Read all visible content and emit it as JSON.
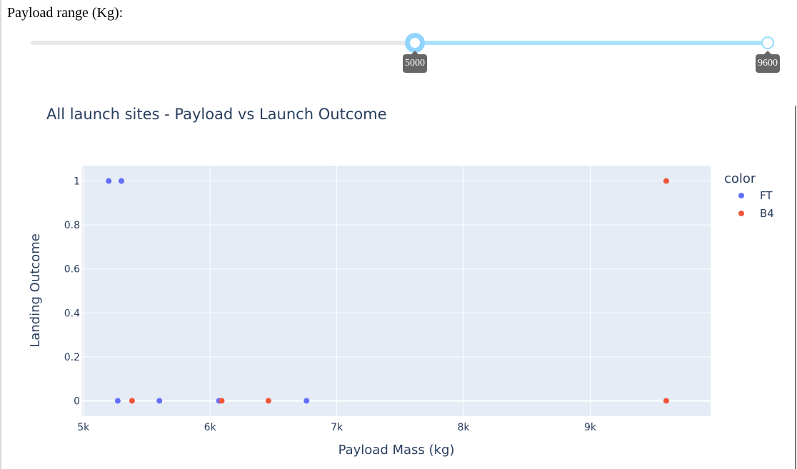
{
  "slider": {
    "label": "Payload range (Kg):",
    "min_value": 5000,
    "max_value": 9600,
    "min_label": "5000",
    "max_label": "9600"
  },
  "chart_data": {
    "type": "scatter",
    "title": "All launch sites - Payload vs Launch Outcome",
    "xlabel": "Payload Mass (kg)",
    "ylabel": "Landing Outcome",
    "xlim": [
      4990,
      9950
    ],
    "ylim": [
      -0.07,
      1.07
    ],
    "x_ticks": [
      5000,
      6000,
      7000,
      8000,
      9000
    ],
    "x_tick_labels": [
      "5k",
      "6k",
      "7k",
      "8k",
      "9k"
    ],
    "y_ticks": [
      0,
      0.2,
      0.4,
      0.6,
      0.8,
      1
    ],
    "y_tick_labels": [
      "0",
      "0.2",
      "0.4",
      "0.6",
      "0.8",
      "1"
    ],
    "grid": true,
    "legend": {
      "title": "color",
      "placement": "top-right"
    },
    "series": [
      {
        "name": "FT",
        "color": "#636efa",
        "points": [
          {
            "x": 5200,
            "y": 1
          },
          {
            "x": 5300,
            "y": 1
          },
          {
            "x": 5271,
            "y": 0
          },
          {
            "x": 5600,
            "y": 0
          },
          {
            "x": 6070,
            "y": 0
          },
          {
            "x": 6761,
            "y": 0
          }
        ]
      },
      {
        "name": "B4",
        "color": "#ef553b",
        "points": [
          {
            "x": 9600,
            "y": 1
          },
          {
            "x": 5384,
            "y": 0
          },
          {
            "x": 6092,
            "y": 0
          },
          {
            "x": 6460,
            "y": 0
          },
          {
            "x": 9600,
            "y": 0
          }
        ]
      }
    ]
  },
  "colors": {
    "plot_bg": "#e5ecf6",
    "text": "#2a3f5f",
    "slider_track": "#abe2fb"
  }
}
